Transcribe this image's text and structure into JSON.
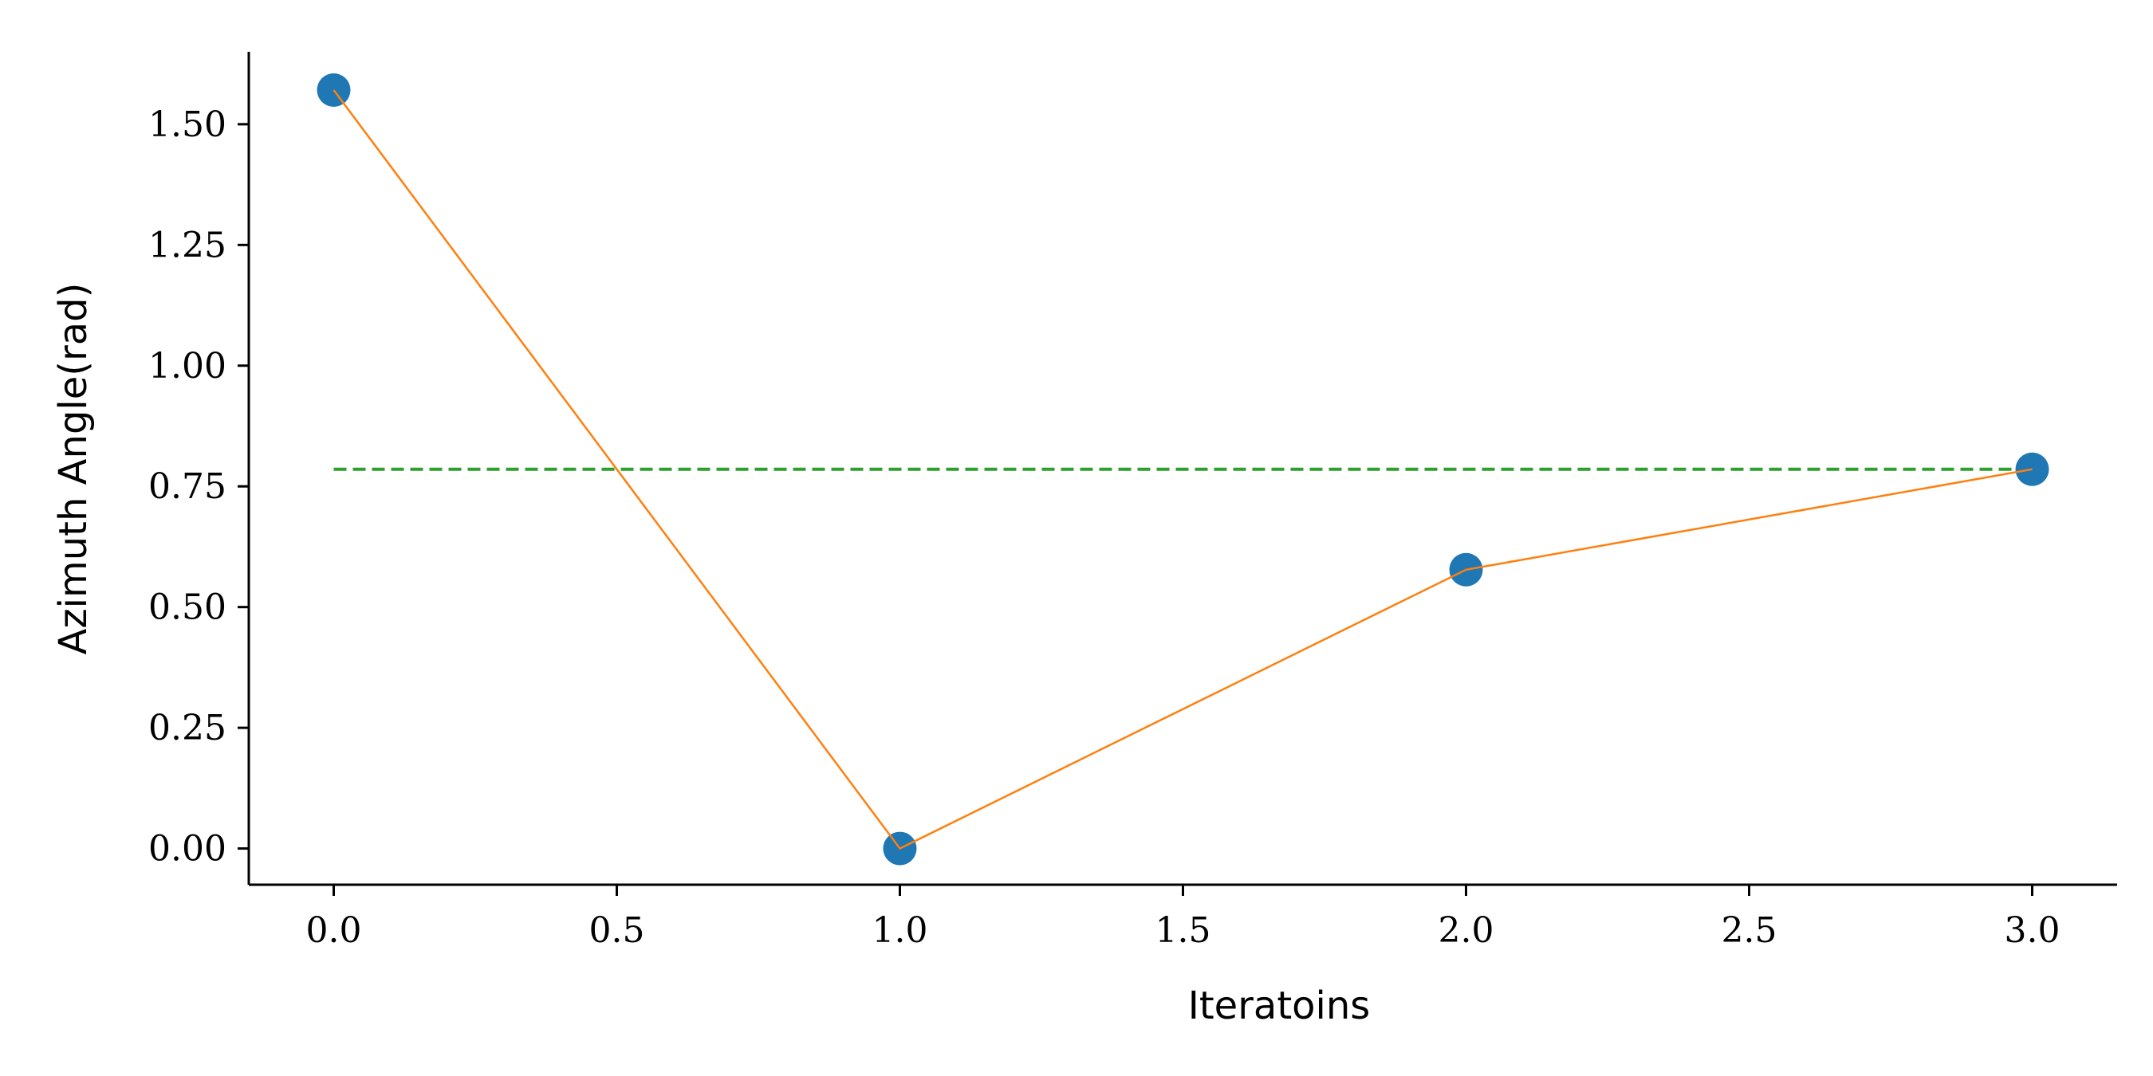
{
  "chart_data": {
    "type": "line",
    "title": "",
    "xlabel": "Iteratoins",
    "ylabel": "Azimuth Angle(rad)",
    "xlim": [
      -0.15,
      3.15
    ],
    "ylim": [
      -0.075,
      1.65
    ],
    "xticks": [
      0.0,
      0.5,
      1.0,
      1.5,
      2.0,
      2.5,
      3.0
    ],
    "xtick_labels": [
      "0.0",
      "0.5",
      "1.0",
      "1.5",
      "2.0",
      "2.5",
      "3.0"
    ],
    "yticks": [
      0.0,
      0.25,
      0.5,
      0.75,
      1.0,
      1.25,
      1.5
    ],
    "ytick_labels": [
      "0.00",
      "0.25",
      "0.50",
      "0.75",
      "1.00",
      "1.25",
      "1.50"
    ],
    "grid": false,
    "legend": "none",
    "series": [
      {
        "type": "scatter",
        "x": [
          0,
          1,
          2,
          3
        ],
        "y": [
          1.5708,
          0.0,
          0.5774,
          0.7854
        ],
        "color": "#1f77b4"
      },
      {
        "type": "line",
        "x": [
          0,
          1,
          2,
          3
        ],
        "y": [
          1.5708,
          0.0,
          0.5774,
          0.7854
        ],
        "color": "#ff7f0e"
      },
      {
        "type": "hline-dashed",
        "x": [
          0,
          3
        ],
        "y": [
          0.7854,
          0.7854
        ],
        "color": "#2ca02c"
      }
    ]
  }
}
